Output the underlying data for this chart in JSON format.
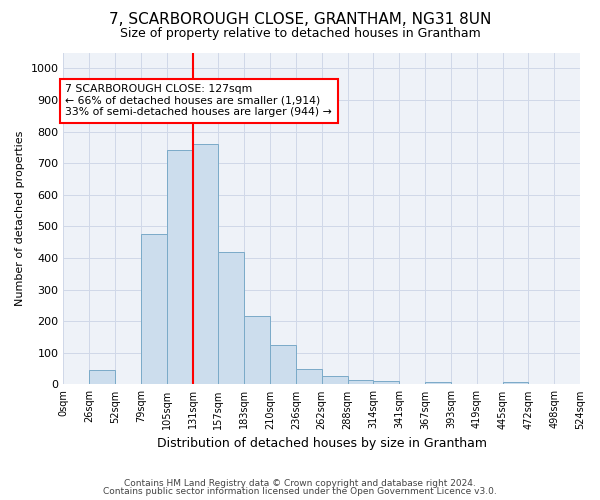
{
  "title": "7, SCARBOROUGH CLOSE, GRANTHAM, NG31 8UN",
  "subtitle": "Size of property relative to detached houses in Grantham",
  "xlabel": "Distribution of detached houses by size in Grantham",
  "ylabel": "Number of detached properties",
  "footnote1": "Contains HM Land Registry data © Crown copyright and database right 2024.",
  "footnote2": "Contains public sector information licensed under the Open Government Licence v3.0.",
  "bin_labels": [
    "0sqm",
    "26sqm",
    "52sqm",
    "79sqm",
    "105sqm",
    "131sqm",
    "157sqm",
    "183sqm",
    "210sqm",
    "236sqm",
    "262sqm",
    "288sqm",
    "314sqm",
    "341sqm",
    "367sqm",
    "393sqm",
    "419sqm",
    "445sqm",
    "472sqm",
    "498sqm",
    "524sqm"
  ],
  "bar_heights": [
    0,
    45,
    0,
    475,
    740,
    760,
    420,
    215,
    125,
    50,
    28,
    15,
    10,
    0,
    8,
    0,
    0,
    8,
    0,
    0
  ],
  "bar_color": "#ccdded",
  "bar_edge_color": "#7aaac8",
  "property_line_bin": 5,
  "property_line_color": "red",
  "annotation_text": "7 SCARBOROUGH CLOSE: 127sqm\n← 66% of detached houses are smaller (1,914)\n33% of semi-detached houses are larger (944) →",
  "ylim": [
    0,
    1050
  ],
  "yticks": [
    0,
    100,
    200,
    300,
    400,
    500,
    600,
    700,
    800,
    900,
    1000
  ],
  "background_color": "white",
  "grid_color": "#d0d8e8",
  "title_fontsize": 11,
  "subtitle_fontsize": 9
}
